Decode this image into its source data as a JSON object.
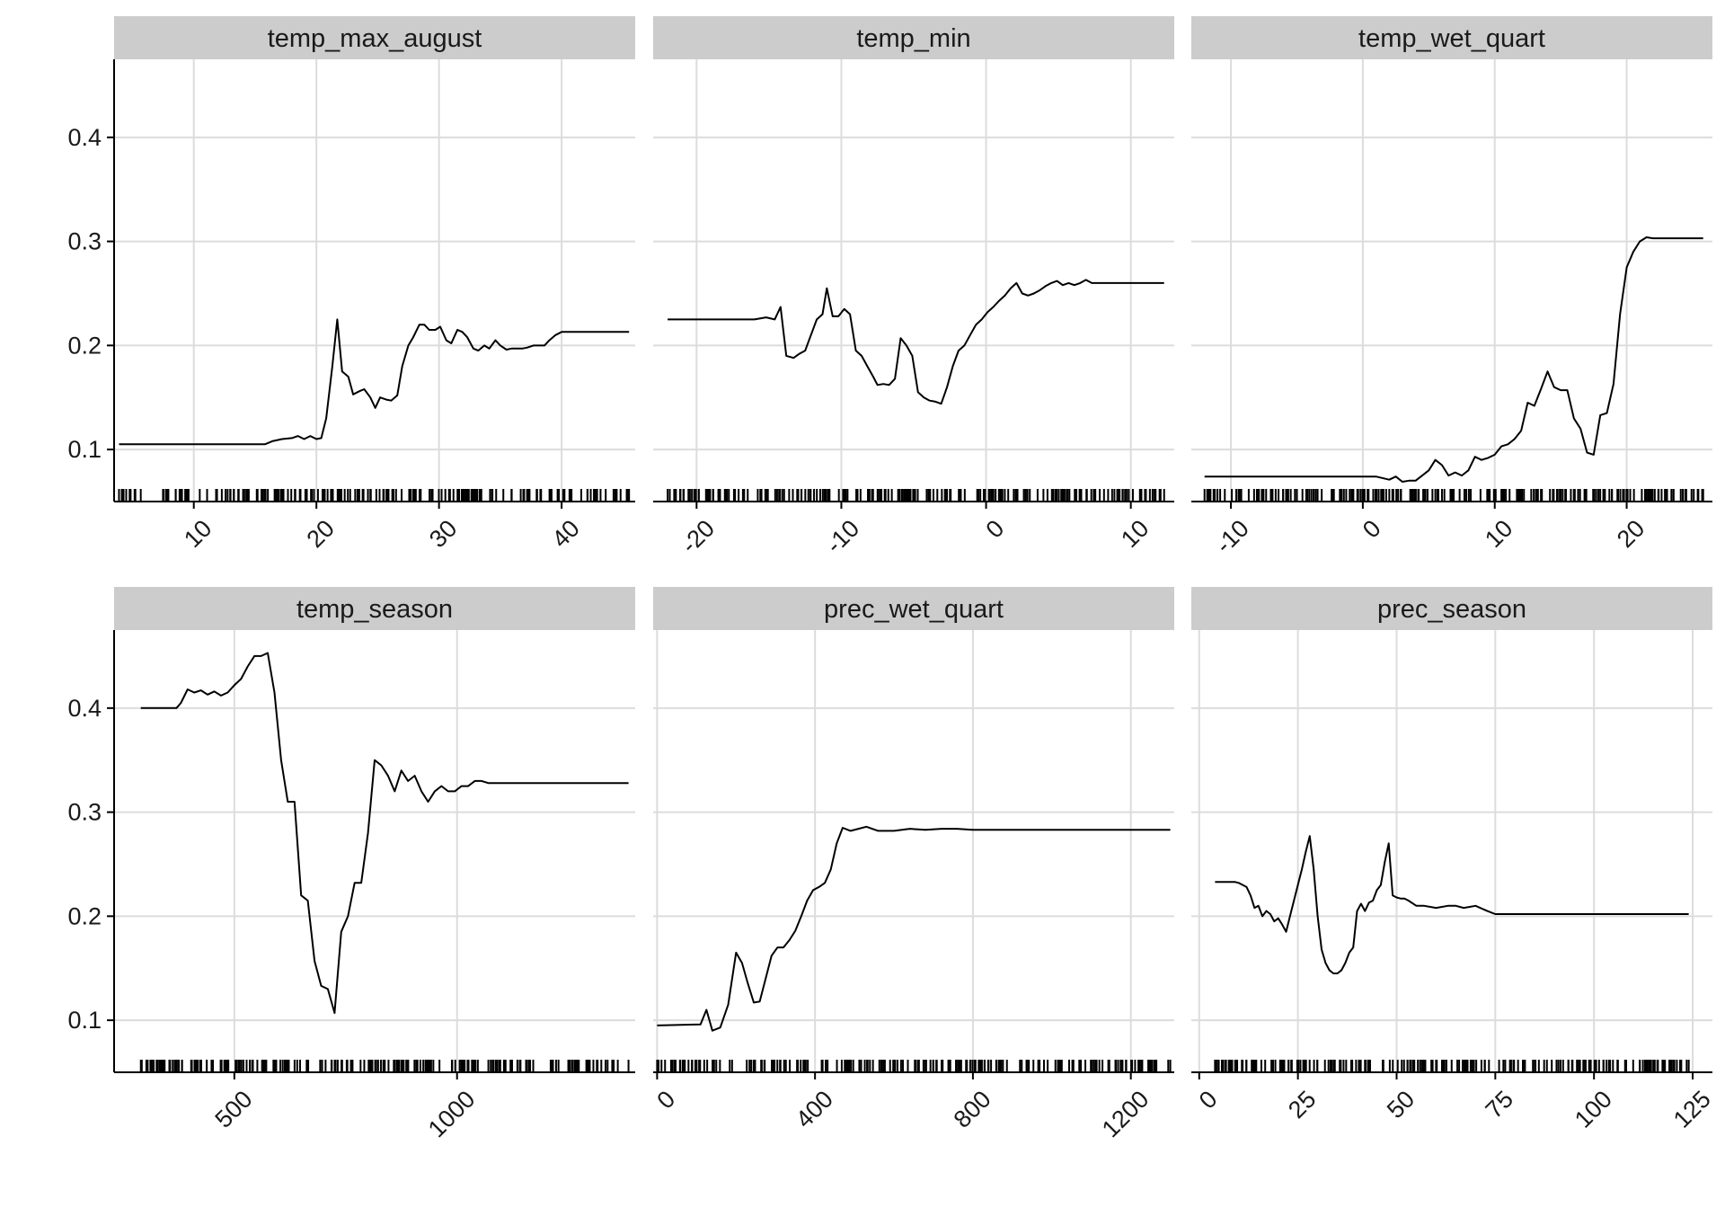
{
  "chart_data": {
    "type": "line",
    "layout": "facet grid, 2 rows x 3 columns, shared y axis",
    "ylim": [
      0.05,
      0.475
    ],
    "y_ticks": [
      0.1,
      0.2,
      0.3,
      0.4
    ],
    "y_tick_labels": [
      "0.1",
      "0.2",
      "0.3",
      "0.4"
    ],
    "grid": true,
    "rug": true,
    "colors": {
      "strip": "#cccccc",
      "grid": "#dcdcdc",
      "line": "#000000",
      "axis": "#000000"
    },
    "panels": [
      {
        "title": "temp_max_august",
        "xlim": [
          3.5,
          46
        ],
        "x_ticks": [
          10,
          20,
          30,
          40
        ],
        "x_tick_labels": [
          "10",
          "20",
          "30",
          "40"
        ],
        "x": [
          3.9,
          8,
          12,
          15.8,
          16.4,
          17.2,
          18,
          18.5,
          19,
          19.5,
          20,
          20.4,
          20.8,
          21.3,
          21.7,
          22.1,
          22.6,
          23,
          23.5,
          23.9,
          24.4,
          24.8,
          25.2,
          25.7,
          26.1,
          26.6,
          27,
          27.5,
          27.9,
          28.4,
          28.8,
          29.2,
          29.7,
          30.1,
          30.6,
          31,
          31.5,
          31.9,
          32.3,
          32.8,
          33.2,
          33.7,
          34.1,
          34.6,
          35,
          35.5,
          35.9,
          36.4,
          36.8,
          37.2,
          37.7,
          38.1,
          38.6,
          39,
          39.5,
          40,
          45.5
        ],
        "y": [
          0.105,
          0.105,
          0.105,
          0.105,
          0.108,
          0.11,
          0.111,
          0.113,
          0.11,
          0.113,
          0.11,
          0.111,
          0.13,
          0.18,
          0.225,
          0.175,
          0.17,
          0.153,
          0.156,
          0.158,
          0.15,
          0.14,
          0.15,
          0.148,
          0.147,
          0.152,
          0.18,
          0.2,
          0.208,
          0.22,
          0.22,
          0.215,
          0.215,
          0.218,
          0.205,
          0.202,
          0.215,
          0.213,
          0.208,
          0.197,
          0.195,
          0.2,
          0.197,
          0.205,
          0.2,
          0.196,
          0.197,
          0.197,
          0.197,
          0.198,
          0.2,
          0.2,
          0.2,
          0.205,
          0.21,
          0.213,
          0.213
        ]
      },
      {
        "title": "temp_min",
        "xlim": [
          -23,
          13
        ],
        "x_ticks": [
          -20,
          -10,
          0,
          10
        ],
        "x_tick_labels": [
          "-20",
          "-10",
          "0",
          "10"
        ],
        "x": [
          -22,
          -18,
          -16,
          -15.2,
          -14.6,
          -14.2,
          -13.8,
          -13.3,
          -12.9,
          -12.5,
          -12.1,
          -11.7,
          -11.3,
          -11,
          -10.6,
          -10.2,
          -9.8,
          -9.4,
          -9,
          -8.6,
          -8.2,
          -7.8,
          -7.5,
          -7.1,
          -6.7,
          -6.3,
          -5.9,
          -5.5,
          -5.1,
          -4.7,
          -4.3,
          -3.9,
          -3.5,
          -3.1,
          -2.7,
          -2.3,
          -1.9,
          -1.5,
          -1.1,
          -0.7,
          -0.3,
          0.1,
          0.5,
          0.9,
          1.3,
          1.7,
          2.1,
          2.5,
          2.9,
          3.3,
          3.7,
          4.1,
          4.5,
          4.9,
          5.3,
          5.7,
          6.1,
          6.5,
          6.9,
          7.3,
          7.7,
          12.3
        ],
        "y": [
          0.225,
          0.225,
          0.225,
          0.227,
          0.225,
          0.237,
          0.19,
          0.188,
          0.192,
          0.195,
          0.21,
          0.225,
          0.23,
          0.255,
          0.228,
          0.228,
          0.235,
          0.23,
          0.195,
          0.19,
          0.18,
          0.17,
          0.162,
          0.163,
          0.162,
          0.168,
          0.207,
          0.2,
          0.19,
          0.155,
          0.15,
          0.147,
          0.146,
          0.144,
          0.16,
          0.18,
          0.195,
          0.2,
          0.21,
          0.22,
          0.225,
          0.232,
          0.237,
          0.243,
          0.248,
          0.255,
          0.26,
          0.25,
          0.248,
          0.25,
          0.253,
          0.257,
          0.26,
          0.262,
          0.258,
          0.26,
          0.258,
          0.26,
          0.263,
          0.26,
          0.26,
          0.26
        ]
      },
      {
        "title": "temp_wet_quart",
        "xlim": [
          -13,
          26.5
        ],
        "x_ticks": [
          -10,
          0,
          10,
          20
        ],
        "x_tick_labels": [
          "-10",
          "0",
          "10",
          "20"
        ],
        "x": [
          -12,
          -6,
          0,
          1,
          2,
          2.5,
          3,
          3.5,
          4,
          4.5,
          5,
          5.5,
          6,
          6.5,
          7,
          7.5,
          8,
          8.5,
          9,
          9.5,
          10,
          10.5,
          11,
          11.5,
          12,
          12.5,
          13,
          13.5,
          14,
          14.5,
          15,
          15.5,
          16,
          16.5,
          17,
          17.5,
          18,
          18.5,
          19,
          19.5,
          20,
          20.5,
          21,
          21.5,
          22,
          25.8
        ],
        "y": [
          0.074,
          0.074,
          0.074,
          0.074,
          0.071,
          0.074,
          0.069,
          0.07,
          0.07,
          0.075,
          0.08,
          0.09,
          0.085,
          0.075,
          0.078,
          0.075,
          0.08,
          0.093,
          0.09,
          0.092,
          0.095,
          0.103,
          0.105,
          0.11,
          0.118,
          0.145,
          0.142,
          0.158,
          0.175,
          0.16,
          0.157,
          0.157,
          0.13,
          0.12,
          0.097,
          0.095,
          0.133,
          0.135,
          0.163,
          0.23,
          0.275,
          0.29,
          0.3,
          0.304,
          0.303,
          0.303
        ]
      },
      {
        "title": "temp_season",
        "xlim": [
          230,
          1400
        ],
        "x_ticks": [
          500,
          1000
        ],
        "x_tick_labels": [
          "500",
          "1000"
        ],
        "x": [
          290,
          370,
          380,
          395,
          410,
          425,
          440,
          455,
          470,
          485,
          500,
          515,
          530,
          545,
          560,
          575,
          590,
          605,
          620,
          635,
          650,
          665,
          680,
          695,
          710,
          725,
          740,
          755,
          770,
          785,
          800,
          815,
          830,
          845,
          860,
          875,
          890,
          905,
          920,
          935,
          950,
          965,
          980,
          995,
          1010,
          1025,
          1040,
          1055,
          1070,
          1085,
          1100,
          1385
        ],
        "y": [
          0.4,
          0.4,
          0.405,
          0.418,
          0.415,
          0.417,
          0.413,
          0.416,
          0.412,
          0.415,
          0.422,
          0.428,
          0.44,
          0.45,
          0.45,
          0.453,
          0.415,
          0.35,
          0.31,
          0.31,
          0.22,
          0.215,
          0.157,
          0.133,
          0.13,
          0.107,
          0.185,
          0.2,
          0.232,
          0.232,
          0.28,
          0.35,
          0.345,
          0.335,
          0.32,
          0.34,
          0.33,
          0.335,
          0.32,
          0.31,
          0.32,
          0.325,
          0.32,
          0.32,
          0.325,
          0.325,
          0.33,
          0.33,
          0.328,
          0.328,
          0.328,
          0.328
        ]
      },
      {
        "title": "prec_wet_quart",
        "xlim": [
          -10,
          1310
        ],
        "x_ticks": [
          0,
          400,
          800,
          1200
        ],
        "x_tick_labels": [
          "0",
          "400",
          "800",
          "1200"
        ],
        "x": [
          0,
          110,
          125,
          140,
          160,
          180,
          200,
          215,
          230,
          245,
          260,
          275,
          290,
          305,
          320,
          335,
          350,
          365,
          380,
          395,
          410,
          425,
          440,
          455,
          470,
          490,
          510,
          530,
          560,
          600,
          640,
          680,
          720,
          760,
          800,
          850,
          1300
        ],
        "y": [
          0.095,
          0.096,
          0.11,
          0.09,
          0.093,
          0.115,
          0.165,
          0.155,
          0.135,
          0.117,
          0.118,
          0.14,
          0.162,
          0.17,
          0.17,
          0.177,
          0.186,
          0.2,
          0.215,
          0.225,
          0.228,
          0.232,
          0.245,
          0.27,
          0.285,
          0.282,
          0.284,
          0.286,
          0.282,
          0.282,
          0.284,
          0.283,
          0.284,
          0.284,
          0.283,
          0.283,
          0.283
        ]
      },
      {
        "title": "prec_season",
        "xlim": [
          -2,
          130
        ],
        "x_ticks": [
          0,
          25,
          50,
          75,
          100,
          125
        ],
        "x_tick_labels": [
          "0",
          "25",
          "50",
          "75",
          "100",
          "125"
        ],
        "x": [
          4,
          9,
          10,
          12,
          13,
          14,
          15,
          16,
          17,
          18,
          19,
          20,
          21,
          22,
          23,
          24,
          25,
          26,
          27,
          28,
          29,
          30,
          31,
          32,
          33,
          34,
          35,
          36,
          37,
          38,
          39,
          40,
          41,
          42,
          43,
          44,
          45,
          46,
          47,
          48,
          49,
          50,
          51,
          52,
          53,
          55,
          57,
          60,
          63,
          65,
          67,
          70,
          73,
          75,
          80,
          90,
          100,
          110,
          124
        ],
        "y": [
          0.233,
          0.233,
          0.232,
          0.228,
          0.22,
          0.208,
          0.21,
          0.2,
          0.205,
          0.202,
          0.195,
          0.198,
          0.192,
          0.185,
          0.2,
          0.215,
          0.23,
          0.245,
          0.262,
          0.277,
          0.245,
          0.2,
          0.168,
          0.155,
          0.148,
          0.145,
          0.145,
          0.148,
          0.155,
          0.165,
          0.17,
          0.205,
          0.212,
          0.205,
          0.213,
          0.215,
          0.225,
          0.23,
          0.252,
          0.27,
          0.22,
          0.218,
          0.217,
          0.217,
          0.215,
          0.21,
          0.21,
          0.208,
          0.21,
          0.21,
          0.208,
          0.21,
          0.205,
          0.202,
          0.202,
          0.202,
          0.202,
          0.202,
          0.202
        ]
      }
    ]
  }
}
